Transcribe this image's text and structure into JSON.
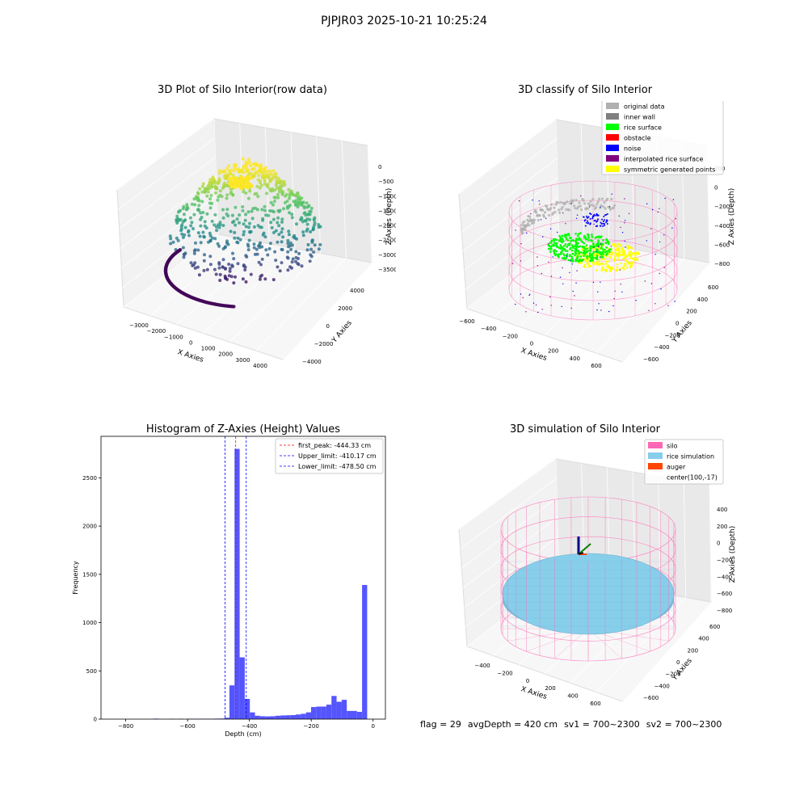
{
  "suptitle": "PJPJR03 2025-10-21 10:25:24",
  "footer": {
    "flag": "flag = 29",
    "avg_depth": "avgDepth = 420 cm",
    "sv1": "sv1 = 700~2300",
    "sv2": "sv2 = 700~2300"
  },
  "colors": {
    "histogram_bar": "#5555ff",
    "first_peak_line": "#ff0000",
    "limit_line": "#0000ff",
    "silo": "#ff69b4",
    "rice_simulation": "#87ceeb",
    "auger": "#ff4500",
    "inner_wall": "#808080",
    "rice_surface": "#00ff00",
    "obstacle": "#ff0000",
    "noise": "#0000ff",
    "interpolated": "#800080",
    "symmetric": "#ffff00",
    "original": "#b0b0b0"
  },
  "chart_data": [
    {
      "type": "scatter",
      "projection": "3d",
      "title": "3D Plot of Silo Interior(row data)",
      "xlabel": "X Axies",
      "ylabel": "Y Axies",
      "zlabel": "Z Axies (Depth)",
      "xticks": [
        "−3000",
        "−2000",
        "−1000",
        "0",
        "1000",
        "2000",
        "3000",
        "4000"
      ],
      "yticks": [
        "−4000",
        "−2000",
        "0",
        "2000",
        "4000"
      ],
      "zticks": [
        "0",
        "−500",
        "−1000",
        "−1500",
        "−2000",
        "−2500",
        "−3000",
        "−3500"
      ],
      "colormap": "viridis"
    },
    {
      "type": "scatter",
      "projection": "3d",
      "title": "3D classify of Silo Interior",
      "xlabel": "X Axies",
      "ylabel": "Y Axies",
      "zlabel": "Z Axies (Depth)",
      "xticks": [
        "−600",
        "−400",
        "−200",
        "0",
        "200",
        "400",
        "600"
      ],
      "yticks": [
        "−600",
        "−400",
        "−200",
        "0",
        "200",
        "400",
        "600"
      ],
      "zticks": [
        "−800",
        "−600",
        "−400",
        "−200",
        "0",
        "200"
      ],
      "legend": [
        {
          "label": "original data",
          "color": "#b0b0b0"
        },
        {
          "label": "inner wall",
          "color": "#808080"
        },
        {
          "label": "rice surface",
          "color": "#00ff00"
        },
        {
          "label": "obstacle",
          "color": "#ff0000"
        },
        {
          "label": "noise",
          "color": "#0000ff"
        },
        {
          "label": "interpolated rice surface",
          "color": "#800080"
        },
        {
          "label": "symmetric generated points",
          "color": "#ffff00"
        }
      ],
      "legend_loc": "upper right"
    },
    {
      "type": "bar",
      "title": "Histogram of Z-Axies (Height) Values",
      "xlabel": "Depth (cm)",
      "ylabel": "Frequency",
      "xlim": [
        -880,
        40
      ],
      "ylim": [
        0,
        2930
      ],
      "xticks": [
        -800,
        -600,
        -400,
        -200,
        0
      ],
      "xtick_labels": [
        "−800",
        "−600",
        "−400",
        "−200",
        "0"
      ],
      "yticks": [
        0,
        500,
        1000,
        1500,
        2000,
        2500
      ],
      "bin_width": 16.5,
      "bins": [
        [
          -710,
          5
        ],
        [
          -660,
          3
        ],
        [
          -630,
          3
        ],
        [
          -600,
          4
        ],
        [
          -580,
          3
        ],
        [
          -563.5,
          3
        ],
        [
          -547,
          4
        ],
        [
          -530.5,
          3
        ],
        [
          -514,
          5
        ],
        [
          -497.5,
          6
        ],
        [
          -481,
          15
        ],
        [
          -464.5,
          350
        ],
        [
          -448,
          2800
        ],
        [
          -431.5,
          640
        ],
        [
          -415,
          210
        ],
        [
          -398.5,
          70
        ],
        [
          -382,
          35
        ],
        [
          -365.5,
          30
        ],
        [
          -349,
          28
        ],
        [
          -332.5,
          30
        ],
        [
          -316,
          35
        ],
        [
          -299.5,
          38
        ],
        [
          -283,
          40
        ],
        [
          -266.5,
          42
        ],
        [
          -250,
          48
        ],
        [
          -233.5,
          55
        ],
        [
          -217,
          70
        ],
        [
          -200.5,
          125
        ],
        [
          -184,
          130
        ],
        [
          -167.5,
          130
        ],
        [
          -151,
          150
        ],
        [
          -134.5,
          240
        ],
        [
          -118,
          180
        ],
        [
          -101.5,
          200
        ],
        [
          -85,
          85
        ],
        [
          -68.5,
          85
        ],
        [
          -52,
          75
        ],
        [
          -35.5,
          1390
        ]
      ],
      "vlines": [
        {
          "label": "first_peak: -444.33 cm",
          "x": -444.33,
          "color": "#ff0000"
        },
        {
          "label": "Upper_limit: -410.17 cm",
          "x": -410.17,
          "color": "#0000ff"
        },
        {
          "label": "Lower_limit: -478.50 cm",
          "x": -478.5,
          "color": "#0000ff"
        }
      ],
      "legend_loc": "upper right"
    },
    {
      "type": "surface",
      "projection": "3d",
      "title": "3D simulation of Silo Interior",
      "xlabel": "X Axies",
      "ylabel": "Y Axies",
      "zlabel": "Z Axies (Depth)",
      "xticks": [
        "−400",
        "−200",
        "0",
        "200",
        "400",
        "600"
      ],
      "yticks": [
        "−600",
        "−400",
        "−200",
        "0",
        "200",
        "400",
        "600"
      ],
      "zticks": [
        "−800",
        "−600",
        "−400",
        "−200",
        "0",
        "200",
        "400"
      ],
      "legend": [
        {
          "label": "silo",
          "color": "#ff69b4"
        },
        {
          "label": "rice simulation",
          "color": "#87ceeb"
        },
        {
          "label": "auger",
          "color": "#ff4500"
        },
        {
          "label": "center(100,-17)",
          "color": ""
        }
      ],
      "legend_loc": "upper right"
    }
  ]
}
